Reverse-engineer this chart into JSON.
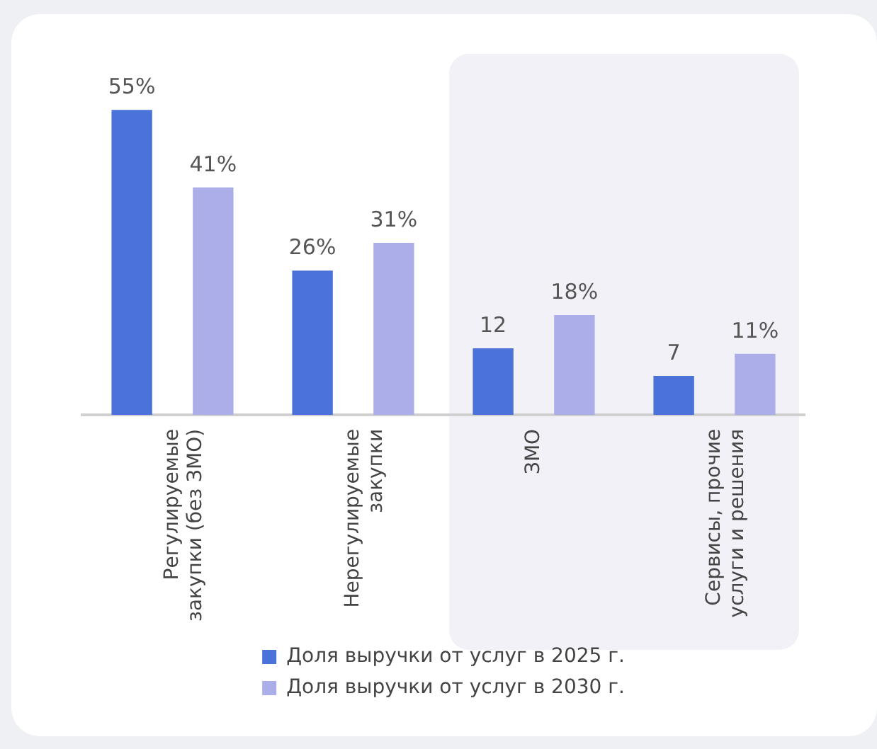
{
  "chart_data": {
    "type": "bar",
    "categories": [
      "Регулируемые закупки (без ЗМО)",
      "Нерегулируемые закупки",
      "ЗМО",
      "Сервисы, прочие услуги и решения"
    ],
    "series": [
      {
        "name": "Доля выручки от услуг в 2025 г.",
        "color": "#4a72d8",
        "values": [
          55,
          26,
          12,
          7
        ],
        "value_labels": [
          "55%",
          "26%",
          "12",
          "7"
        ]
      },
      {
        "name": "Доля выручки от услуг в 2030 г.",
        "color": "#abaee9",
        "values": [
          41,
          31,
          18,
          11
        ],
        "value_labels": [
          "41%",
          "31%",
          "18%",
          "11%"
        ]
      }
    ],
    "tick_labels": "x",
    "grid": false,
    "legend": "bottom",
    "bands": [
      {
        "axis": "x",
        "from": "ЗМО",
        "to": "Сервисы, прочие услуги и решения",
        "color": "#f1f1f7"
      }
    ]
  }
}
